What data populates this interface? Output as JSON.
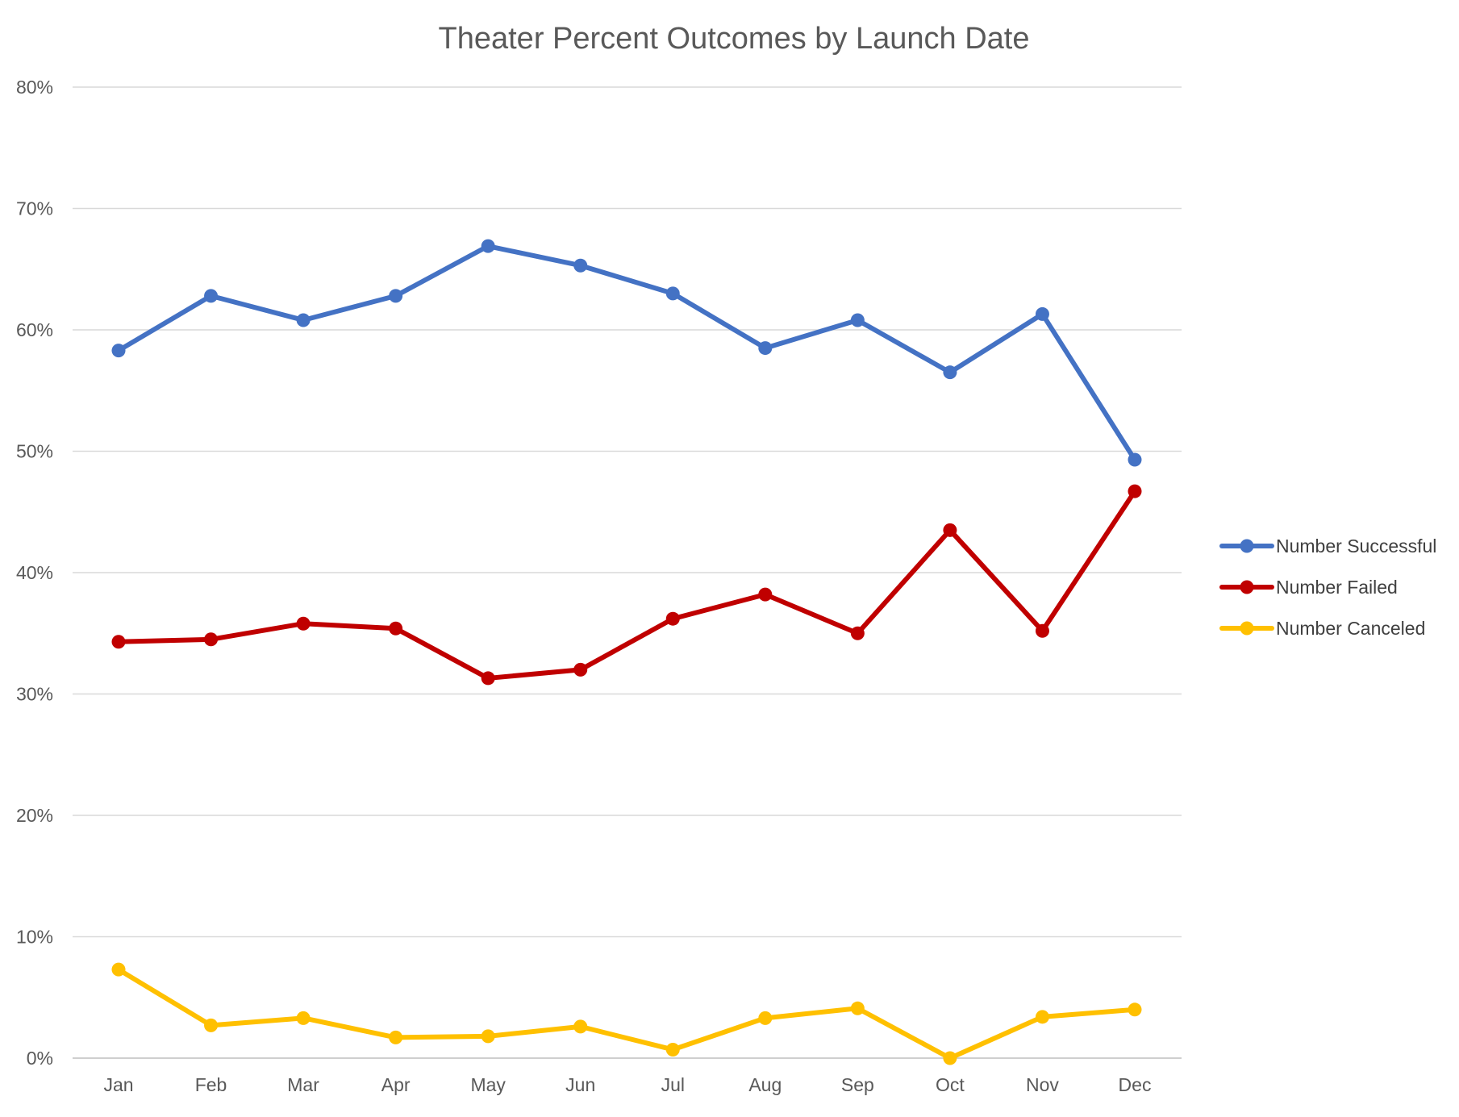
{
  "chart_data": {
    "type": "line",
    "title": "Theater Percent Outcomes by Launch Date",
    "xlabel": "",
    "ylabel": "",
    "categories": [
      "Jan",
      "Feb",
      "Mar",
      "Apr",
      "May",
      "Jun",
      "Jul",
      "Aug",
      "Sep",
      "Oct",
      "Nov",
      "Dec"
    ],
    "ylim": [
      0,
      0.8
    ],
    "yticks": [
      0,
      0.1,
      0.2,
      0.3,
      0.4,
      0.5,
      0.6,
      0.7,
      0.8
    ],
    "ytick_labels": [
      "0%",
      "10%",
      "20%",
      "30%",
      "40%",
      "50%",
      "60%",
      "70%",
      "80%"
    ],
    "grid": true,
    "legend_position": "right",
    "series": [
      {
        "name": "Number Successful",
        "color": "#4472c4",
        "values": [
          0.583,
          0.628,
          0.608,
          0.628,
          0.669,
          0.653,
          0.63,
          0.585,
          0.608,
          0.565,
          0.613,
          0.493
        ]
      },
      {
        "name": "Number Failed",
        "color": "#c00000",
        "values": [
          0.343,
          0.345,
          0.358,
          0.354,
          0.313,
          0.32,
          0.362,
          0.382,
          0.35,
          0.435,
          0.352,
          0.467
        ]
      },
      {
        "name": "Number Canceled",
        "color": "#ffc000",
        "values": [
          0.073,
          0.027,
          0.033,
          0.017,
          0.018,
          0.026,
          0.007,
          0.033,
          0.041,
          0.0,
          0.034,
          0.04
        ]
      }
    ]
  }
}
